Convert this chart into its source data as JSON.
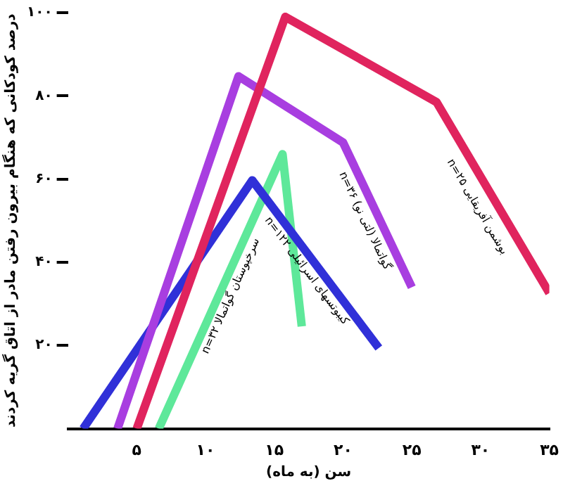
{
  "chart_data": {
    "type": "line",
    "xlabel": "سن (به ماه)",
    "ylabel": "درصد کودکانی که هنگام بیرون رفتن مادر از اتاق گریه کردند",
    "xlim": [
      0,
      35
    ],
    "xticks": [
      {
        "value": 5,
        "label": "۵"
      },
      {
        "value": 10,
        "label": "۱۰"
      },
      {
        "value": 15,
        "label": "۱۵"
      },
      {
        "value": 20,
        "label": "۲۰"
      },
      {
        "value": 25,
        "label": "۲۵"
      },
      {
        "value": 30,
        "label": "۳۰"
      },
      {
        "value": 35,
        "label": "۳۵"
      }
    ],
    "ylim": [
      0,
      100
    ],
    "yticks": [
      {
        "value": 20,
        "label": "۲۰"
      },
      {
        "value": 40,
        "label": "۴۰"
      },
      {
        "value": 60,
        "label": "۶۰"
      },
      {
        "value": 80,
        "label": "۸۰"
      },
      {
        "value": 100,
        "label": "۱۰۰"
      }
    ],
    "grid": false,
    "legend": false,
    "marker": "none",
    "line_style": "solid",
    "series": [
      {
        "name": "بوشمن آفریقایی n=۲۵",
        "color": "#e0245e",
        "x": [
          5,
          15.8,
          26.8,
          35
        ],
        "values": [
          0,
          99,
          78.5,
          32.6
        ]
      },
      {
        "name": "گواتمالا (لتی نو) n=۳۶",
        "color": "#a83ee0",
        "x": [
          3.6,
          12.4,
          20,
          25
        ],
        "values": [
          0,
          84.7,
          68.8,
          34
        ]
      },
      {
        "name": "کیبوتسهای اسرائیلی n=۱۲۲",
        "color": "#3030d8",
        "x": [
          1.1,
          13.4,
          22.6
        ],
        "values": [
          0,
          59.7,
          19.4
        ]
      },
      {
        "name": "سرخپوستان گواتمالا n=۳۲",
        "color": "#5ee89a",
        "x": [
          6.6,
          15.6,
          17
        ],
        "values": [
          0,
          66,
          24.6
        ]
      }
    ]
  }
}
